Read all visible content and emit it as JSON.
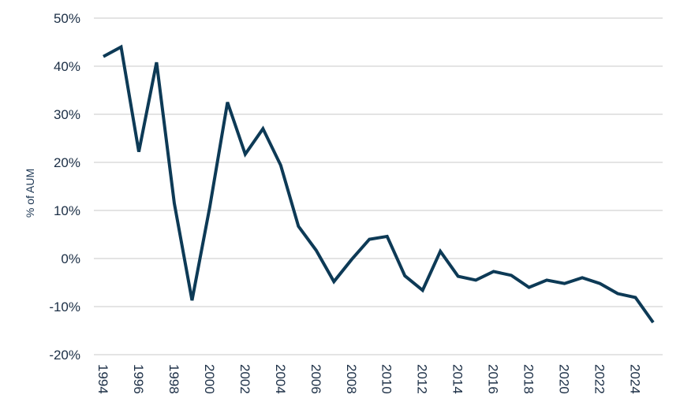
{
  "chart_data": {
    "type": "line",
    "ylabel": "% of AUM",
    "xlabel": "",
    "title": "",
    "ylim": [
      -20,
      50
    ],
    "yticks": [
      50,
      40,
      30,
      20,
      10,
      0,
      -10,
      -20
    ],
    "ytick_labels": [
      "50%",
      "40%",
      "30%",
      "20%",
      "10%",
      "0%",
      "-10%",
      "-20%"
    ],
    "xlim": [
      1994,
      2025
    ],
    "xticks": [
      1994,
      1996,
      1998,
      2000,
      2002,
      2004,
      2006,
      2008,
      2010,
      2012,
      2014,
      2016,
      2018,
      2020,
      2022,
      2024
    ],
    "xtick_labels": [
      "1994",
      "1996",
      "1998",
      "2000",
      "2002",
      "2004",
      "2006",
      "2008",
      "2010",
      "2012",
      "2014",
      "2016",
      "2018",
      "2020",
      "2022",
      "2024"
    ],
    "grid": "horizontal",
    "legend": "none",
    "series": [
      {
        "color": "#0d3a56",
        "x": [
          1994,
          1995,
          1996,
          1997,
          1998,
          1999,
          2000,
          2001,
          2002,
          2003,
          2004,
          2005,
          2006,
          2007,
          2008,
          2009,
          2010,
          2011,
          2012,
          2013,
          2014,
          2015,
          2016,
          2017,
          2018,
          2019,
          2020,
          2021,
          2022,
          2023,
          2024,
          2025
        ],
        "y": [
          42.0,
          44.0,
          22.2,
          40.8,
          11.5,
          -8.7,
          10.7,
          32.5,
          21.7,
          27.0,
          19.4,
          6.7,
          1.7,
          -4.8,
          -0.2,
          4.0,
          4.6,
          -3.6,
          -6.6,
          1.5,
          -3.7,
          -4.5,
          -2.7,
          -3.5,
          -6.0,
          -4.5,
          -5.2,
          -4.0,
          -5.2,
          -7.3,
          -8.1,
          -13.3
        ]
      }
    ]
  }
}
